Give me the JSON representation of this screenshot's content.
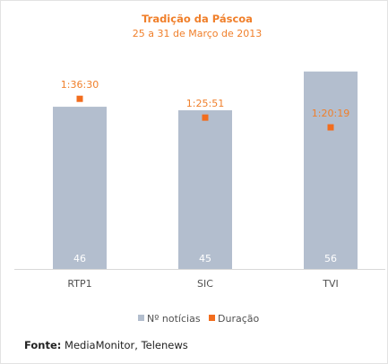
{
  "chart_data": {
    "type": "bar",
    "title": "Tradição da Páscoa",
    "subtitle": "25 a 31 de Março de 2013",
    "categories": [
      "RTP1",
      "SIC",
      "TVI"
    ],
    "series": [
      {
        "name": "Nº notícias",
        "type": "bar",
        "values": [
          46,
          45,
          56
        ],
        "color": "#b3bece"
      },
      {
        "name": "Duração",
        "type": "point",
        "values": [
          "1:36:30",
          "1:25:51",
          "1:20:19"
        ],
        "color": "#f26d1e"
      }
    ],
    "bar_ylim": [
      0,
      60
    ],
    "duration_ylim_seconds": [
      0,
      7200
    ],
    "legend_position": "bottom",
    "grid": false
  },
  "source": {
    "label": "Fonte:",
    "text": " MediaMonitor, Telenews"
  }
}
